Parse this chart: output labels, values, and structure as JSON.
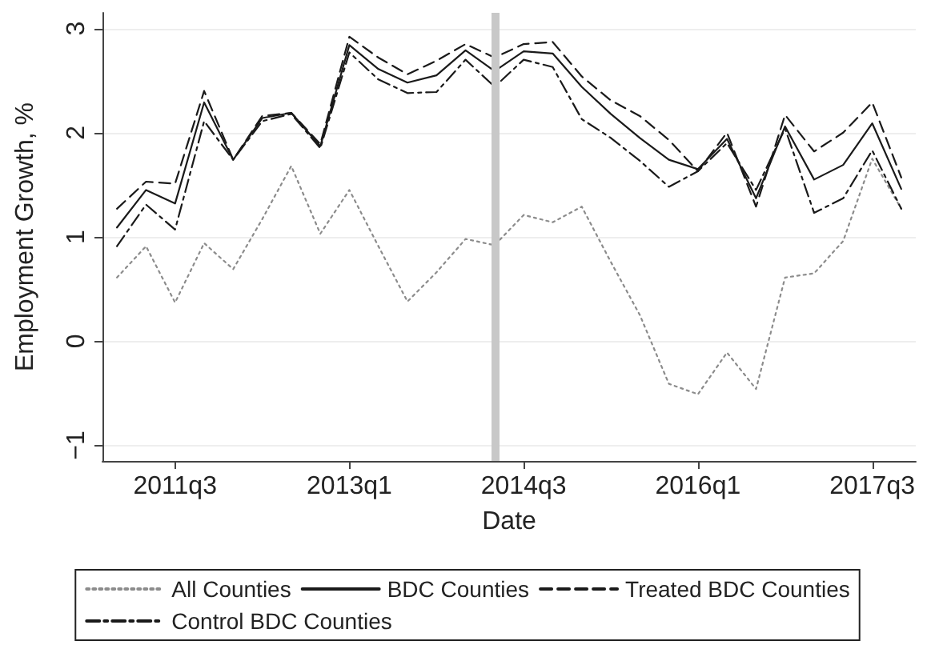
{
  "chart_data": {
    "type": "line",
    "xlabel": "Date",
    "ylabel": "Employment Growth, %",
    "categories": [
      null,
      null,
      "2011q3",
      null,
      null,
      null,
      null,
      null,
      "2013q1",
      null,
      null,
      null,
      null,
      null,
      "2014q3",
      null,
      null,
      null,
      null,
      null,
      "2016q1",
      null,
      null,
      null,
      null,
      null,
      "2017q3",
      null
    ],
    "series": [
      {
        "name": "All Counties",
        "color": "#8c8c8c",
        "line_style": "dotted",
        "values": [
          0.61,
          0.91,
          0.37,
          0.94,
          0.69,
          1.17,
          1.68,
          1.03,
          1.45,
          0.91,
          0.38,
          0.66,
          0.98,
          0.92,
          1.21,
          1.14,
          1.29,
          0.76,
          0.25,
          -0.41,
          -0.51,
          -0.11,
          -0.46,
          0.61,
          0.65,
          0.96,
          1.75,
          1.27
        ]
      },
      {
        "name": "BDC Counties",
        "color": "#1a1a1a",
        "line_style": "solid",
        "values": [
          1.09,
          1.45,
          1.32,
          2.29,
          1.74,
          2.14,
          2.19,
          1.87,
          2.84,
          2.61,
          2.48,
          2.55,
          2.79,
          2.59,
          2.78,
          2.76,
          2.44,
          2.18,
          1.95,
          1.74,
          1.65,
          1.94,
          1.37,
          2.06,
          1.55,
          1.69,
          2.09,
          1.46
        ]
      },
      {
        "name": "Treated BDC Counties",
        "color": "#1a1a1a",
        "line_style": "dashed",
        "values": [
          1.27,
          1.53,
          1.51,
          2.4,
          1.74,
          2.16,
          2.19,
          1.89,
          2.92,
          2.72,
          2.56,
          2.69,
          2.85,
          2.72,
          2.85,
          2.87,
          2.54,
          2.31,
          2.16,
          1.93,
          1.63,
          2.0,
          1.29,
          2.17,
          1.82,
          2.0,
          2.29,
          1.57
        ]
      },
      {
        "name": "Control BDC Counties",
        "color": "#1a1a1a",
        "line_style": "dashdot",
        "values": [
          0.91,
          1.31,
          1.07,
          2.11,
          1.74,
          2.11,
          2.18,
          1.85,
          2.77,
          2.51,
          2.38,
          2.39,
          2.7,
          2.44,
          2.7,
          2.63,
          2.13,
          1.95,
          1.73,
          1.48,
          1.63,
          1.9,
          1.45,
          2.04,
          1.23,
          1.37,
          1.83,
          1.27
        ]
      }
    ],
    "ylim": [
      -1.15,
      3.15
    ],
    "yticks": [
      -1,
      0,
      1,
      2,
      3
    ],
    "grid": "y",
    "legend": "bottom",
    "marker": "none"
  }
}
